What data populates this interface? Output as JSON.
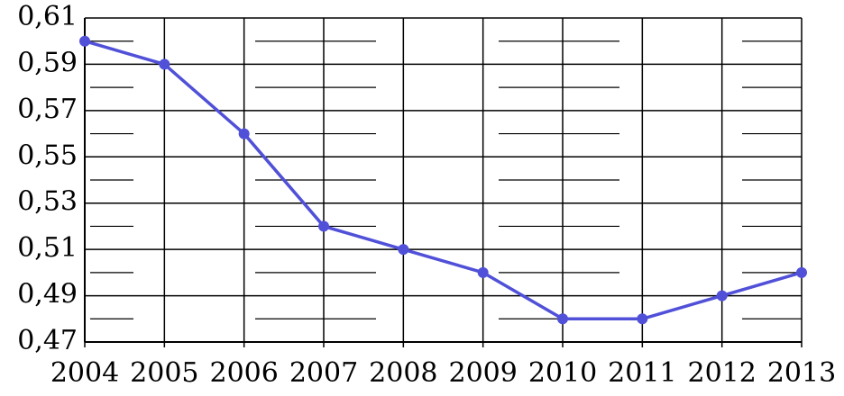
{
  "chart_data": {
    "type": "line",
    "categories": [
      "2004",
      "2005",
      "2006",
      "2007",
      "2008",
      "2009",
      "2010",
      "2011",
      "2012",
      "2013"
    ],
    "values": [
      0.6,
      0.59,
      0.56,
      0.52,
      0.51,
      0.5,
      0.48,
      0.48,
      0.49,
      0.5
    ],
    "color": "#5050d8",
    "ylim": [
      0.47,
      0.61
    ],
    "yticks": [
      {
        "value": 0.47,
        "label": "0,47"
      },
      {
        "value": 0.49,
        "label": "0,49"
      },
      {
        "value": 0.51,
        "label": "0,51"
      },
      {
        "value": 0.53,
        "label": "0,53"
      },
      {
        "value": 0.55,
        "label": "0,55"
      },
      {
        "value": 0.57,
        "label": "0,57"
      },
      {
        "value": 0.59,
        "label": "0,59"
      },
      {
        "value": 0.61,
        "label": "0,61"
      }
    ],
    "minor_yticks": [
      0.48,
      0.5,
      0.52,
      0.54,
      0.56,
      0.58,
      0.6
    ],
    "grid": true
  }
}
